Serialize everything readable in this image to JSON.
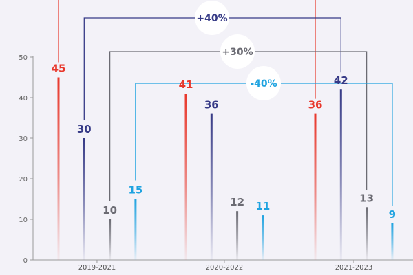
{
  "chart_data": {
    "type": "bar",
    "categories": [
      "2019-2021",
      "2020-2022",
      "2021-2023"
    ],
    "ylim": [
      0,
      50
    ],
    "yticks": [
      0,
      10,
      20,
      30,
      40,
      50
    ],
    "colors": [
      "#e8372b",
      "#363a86",
      "#6b6b73",
      "#1fa3e0"
    ],
    "series": [
      {
        "values": [
          45,
          41,
          36
        ]
      },
      {
        "values": [
          30,
          36,
          42
        ]
      },
      {
        "values": [
          10,
          12,
          13
        ]
      },
      {
        "values": [
          15,
          11,
          9
        ]
      }
    ],
    "changes": [
      {
        "series": 1,
        "label": "+40%"
      },
      {
        "series": 2,
        "label": "+30%"
      },
      {
        "series": 3,
        "label": "-40%"
      }
    ]
  }
}
